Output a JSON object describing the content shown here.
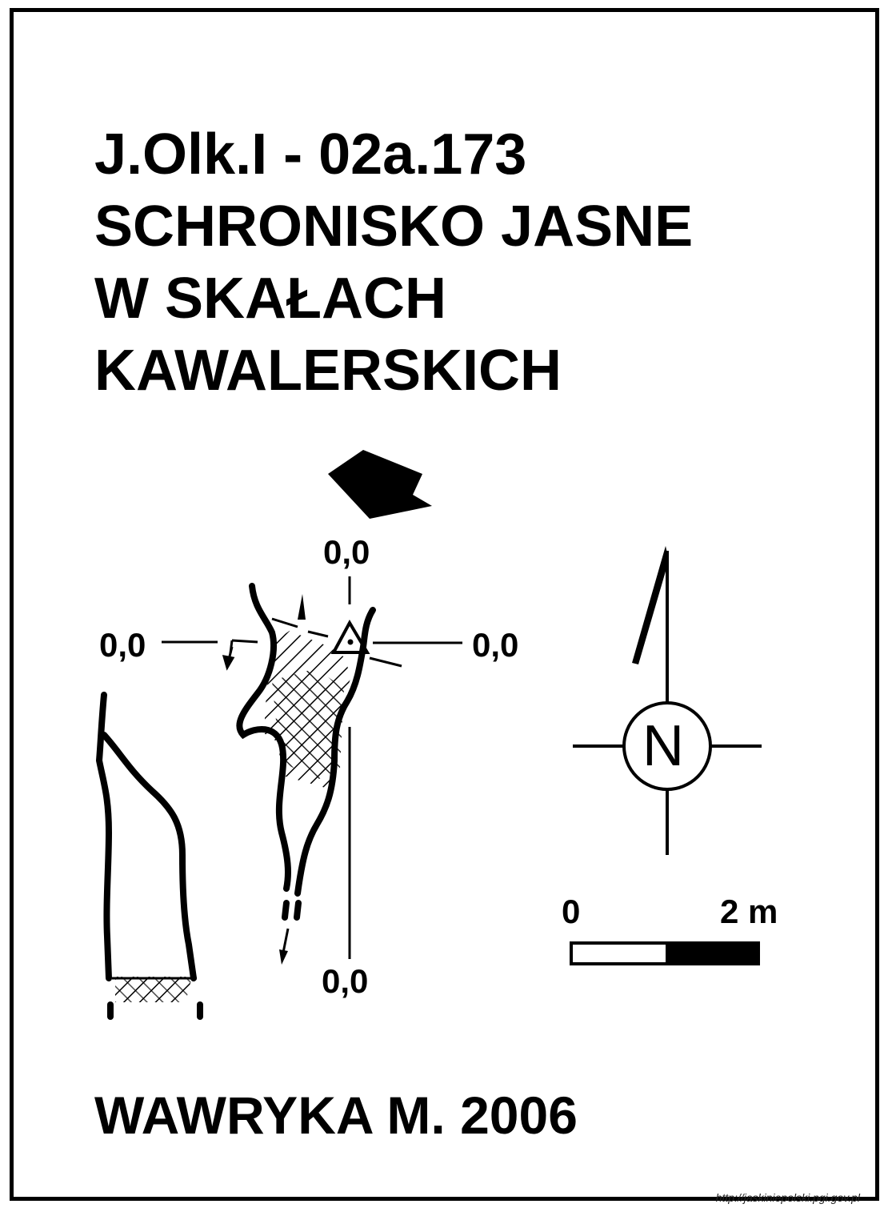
{
  "title": {
    "line1": "J.Olk.I - 02a.173",
    "line2": "SCHRONISKO JASNE",
    "line3": "W SKAŁACH",
    "line4": "KAWALERSKICH"
  },
  "survey": {
    "datum_top": "0,0",
    "datum_left": "0,0",
    "datum_right": "0,0",
    "datum_bottom": "0,0"
  },
  "compass": {
    "north_letter": "N"
  },
  "scale": {
    "start_label": "0",
    "end_label": "2 m"
  },
  "author": "WAWRYKA M. 2006",
  "source": "http://jaskiniepolski.pgi.gov.pl",
  "colors": {
    "ink": "#000000",
    "paper": "#ffffff"
  },
  "icons": [
    "entrance-arrow-icon",
    "survey-station-triangle-icon",
    "north-arrow-icon",
    "compass-rose-icon"
  ]
}
